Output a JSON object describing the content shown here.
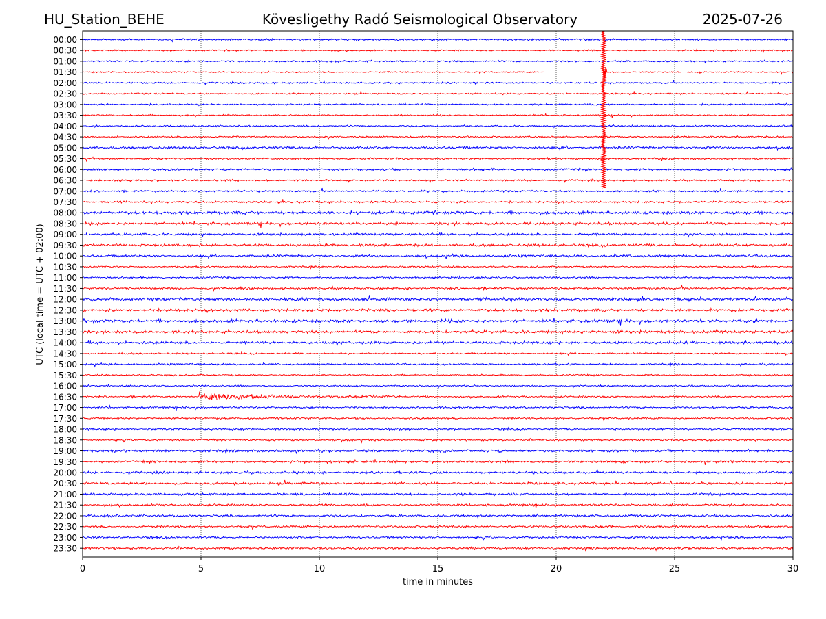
{
  "header": {
    "station": "HU_Station_BEHE",
    "observatory": "Kövesligethy Radó Seismological Observatory",
    "date": "2025-07-26"
  },
  "chart_data": {
    "type": "line",
    "title": "Kövesligethy Radó Seismological Observatory",
    "xlabel": "time in minutes",
    "ylabel": "UTC (local time = UTC + 02:00)",
    "xlim": [
      0,
      30
    ],
    "x_ticks": [
      0,
      5,
      10,
      15,
      20,
      25,
      30
    ],
    "grid": "vertical dotted lines at each x tick",
    "y_tick_labels": [
      "00:00",
      "00:30",
      "01:00",
      "01:30",
      "02:00",
      "02:30",
      "03:00",
      "03:30",
      "04:00",
      "04:30",
      "05:00",
      "05:30",
      "06:00",
      "06:30",
      "07:00",
      "07:30",
      "08:00",
      "08:30",
      "09:00",
      "09:30",
      "10:00",
      "10:30",
      "11:00",
      "11:30",
      "12:00",
      "12:30",
      "13:00",
      "13:30",
      "14:00",
      "14:30",
      "15:00",
      "15:30",
      "16:00",
      "16:30",
      "17:00",
      "17:30",
      "18:00",
      "18:30",
      "19:00",
      "19:30",
      "20:00",
      "20:30",
      "21:00",
      "21:30",
      "22:00",
      "22:30",
      "23:00",
      "23:30"
    ],
    "trace_colors": [
      "#0000ff",
      "#ff0000"
    ],
    "noise_level": [
      1.5,
      1.2,
      1.4,
      1.2,
      1.4,
      1.3,
      1.4,
      1.3,
      1.4,
      1.4,
      2.0,
      1.5,
      1.8,
      1.5,
      1.6,
      1.7,
      2.6,
      2.3,
      2.0,
      2.2,
      2.0,
      1.4,
      1.5,
      1.8,
      2.5,
      2.3,
      2.6,
      2.4,
      2.3,
      1.4,
      1.5,
      1.3,
      1.3,
      1.5,
      1.6,
      1.5,
      1.6,
      1.5,
      1.9,
      1.9,
      2.0,
      2.0,
      1.9,
      1.8,
      1.9,
      1.8,
      1.8,
      1.8
    ],
    "events": [
      {
        "trace": "01:30",
        "x": 22.0,
        "type": "earthquake spike",
        "color": "#ff0000",
        "peak_amplitude_traces": 1.5,
        "extends_down_to": "07:00"
      },
      {
        "trace": "16:30",
        "x_start": 4.9,
        "x_end": 13.5,
        "type": "earthquake coda",
        "color": "#ff0000",
        "peak_amplitude_traces": 0.7
      }
    ],
    "gaps": [
      {
        "trace": "01:30",
        "x_start": 19.5,
        "x_end": 21.95
      },
      {
        "trace": "01:30",
        "x_start": 25.3,
        "x_end": 25.5
      }
    ]
  }
}
